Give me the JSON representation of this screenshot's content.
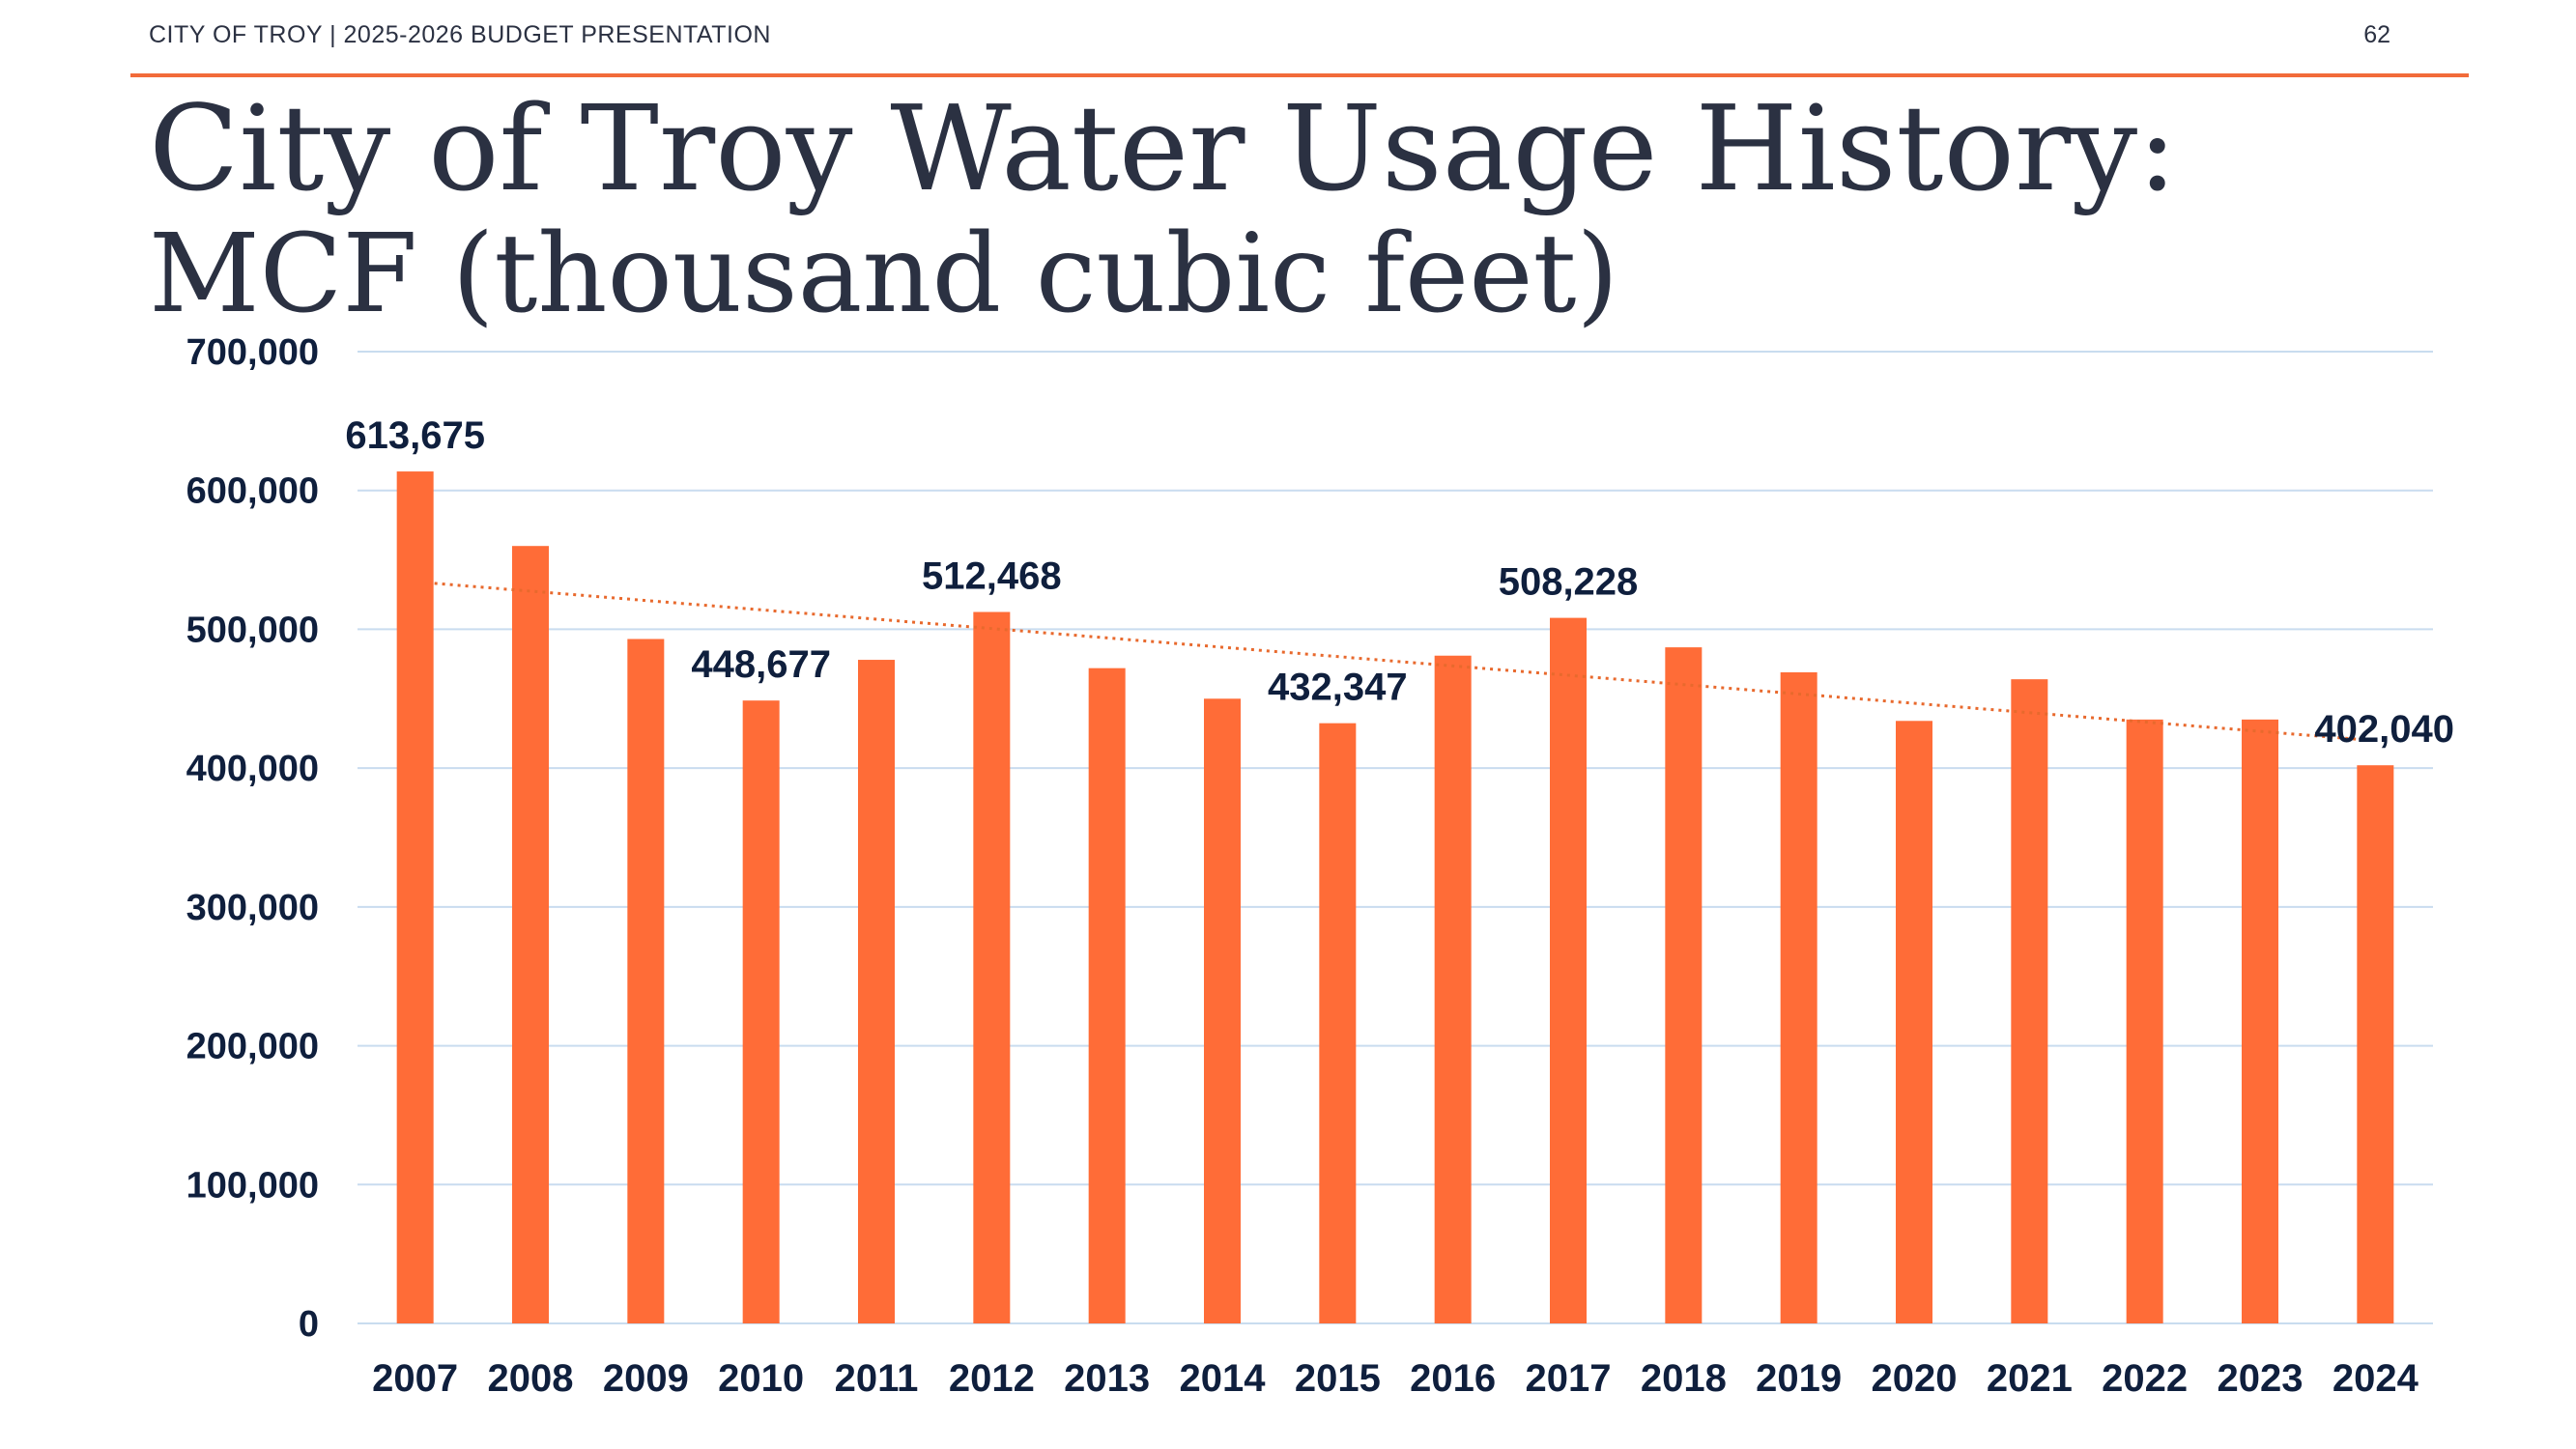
{
  "header": {
    "text": "CITY OF TROY | 2025-2026 BUDGET PRESENTATION",
    "page_number": "62",
    "rule_color": "#f26b3a"
  },
  "title": "City of Troy Water Usage History:",
  "subtitle": "MCF (thousand cubic feet)",
  "chart_data": {
    "type": "bar",
    "categories": [
      "2007",
      "2008",
      "2009",
      "2010",
      "2011",
      "2012",
      "2013",
      "2014",
      "2015",
      "2016",
      "2017",
      "2018",
      "2019",
      "2020",
      "2021",
      "2022",
      "2023",
      "2024"
    ],
    "series": [
      {
        "values": [
          613675,
          560000,
          493000,
          448677,
          478000,
          512468,
          472000,
          450000,
          432347,
          481000,
          508228,
          487000,
          469000,
          434000,
          464000,
          435000,
          435000,
          402040
        ],
        "color": "#ff6c37"
      }
    ],
    "data_labels": [
      {
        "category": "2007",
        "text": "613,675"
      },
      {
        "category": "2010",
        "text": "448,677"
      },
      {
        "category": "2012",
        "text": "512,468"
      },
      {
        "category": "2015",
        "text": "432,347"
      },
      {
        "category": "2017",
        "text": "508,228"
      },
      {
        "category": "2024",
        "text": "402,040"
      }
    ],
    "y_ticks": [
      "0",
      "100,000",
      "200,000",
      "300,000",
      "400,000",
      "500,000",
      "600,000",
      "700,000"
    ],
    "ylim": [
      0,
      700000
    ],
    "grid": true,
    "grid_color": "#c9dcef",
    "trendline": {
      "type": "linear",
      "style": "dotted",
      "color": "#e8692d"
    },
    "xlabel": "",
    "ylabel": ""
  }
}
